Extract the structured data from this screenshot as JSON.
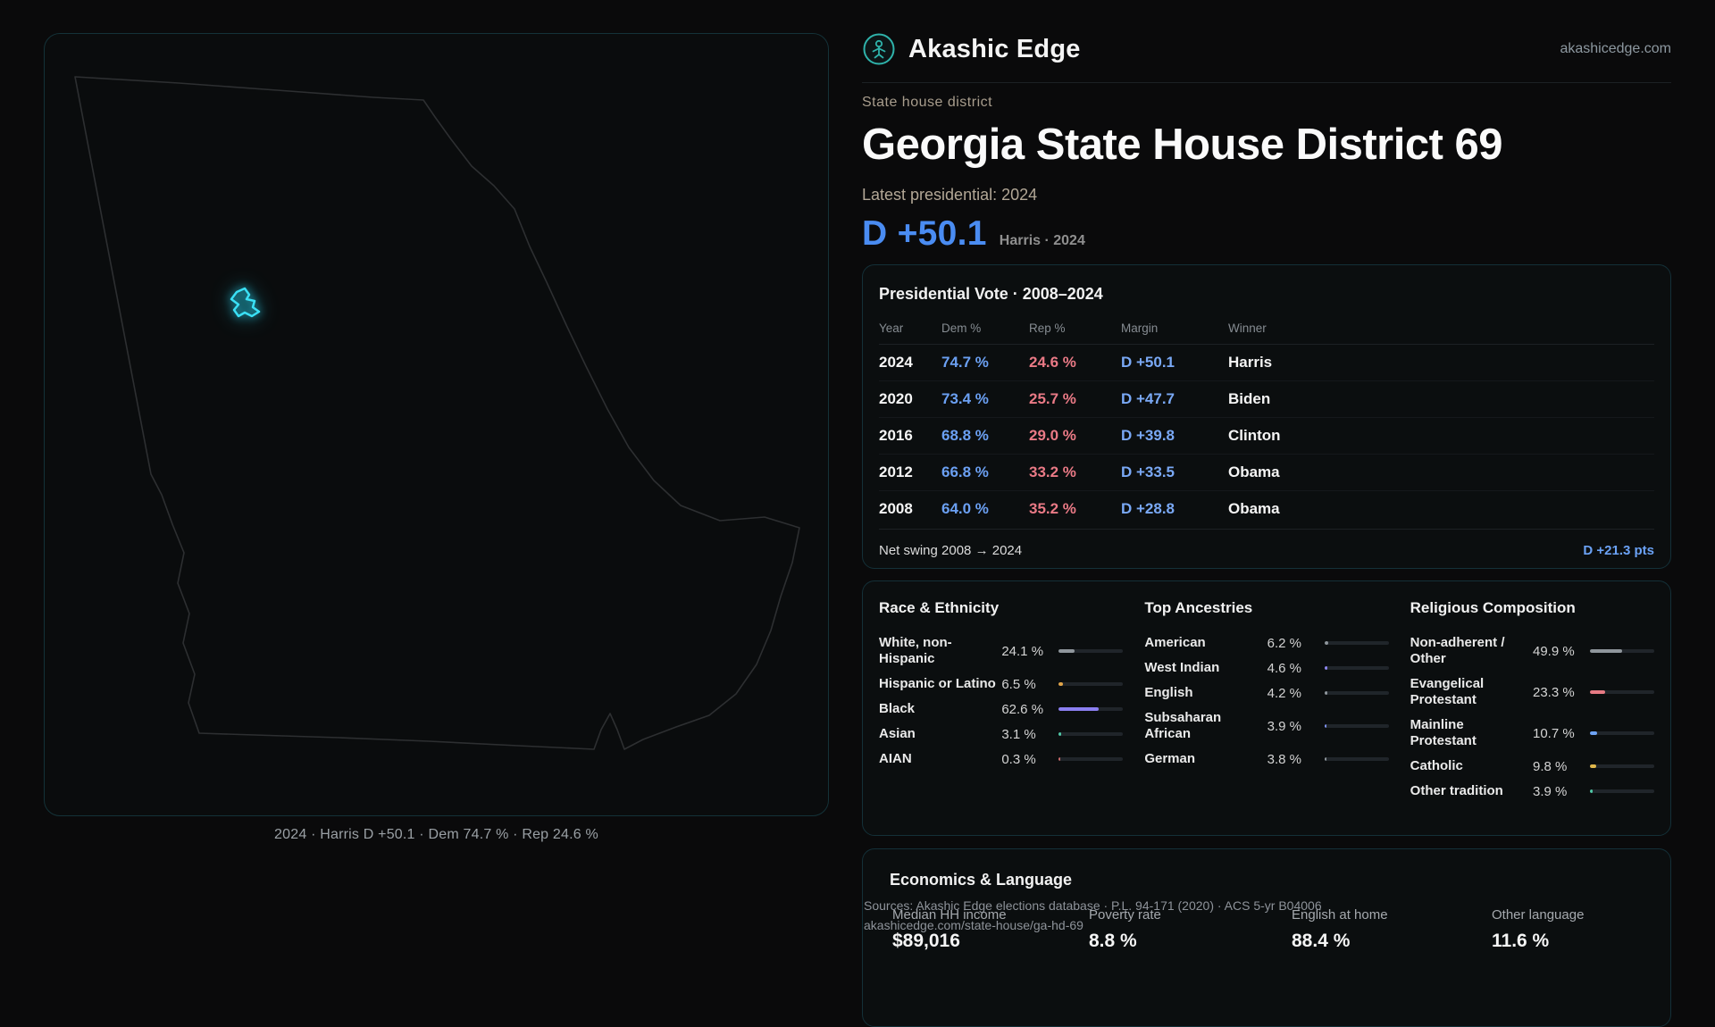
{
  "site": {
    "brand": "Akashic Edge",
    "domain": "akashicedge.com"
  },
  "header": {
    "kicker": "State house district",
    "title": "Georgia State House District 69",
    "subtitle": "Latest presidential: 2024",
    "headline_margin": "D +50.1",
    "headline_context": "Harris · 2024"
  },
  "map": {
    "caption": "2024 · Harris D +50.1 · Dem 74.7 % · Rep 24.6 %",
    "district_color": "#3ae0f5",
    "outline_color": "#2d2f31"
  },
  "presidential": {
    "title": "Presidential Vote · 2008–2024",
    "columns": [
      "Year",
      "Dem %",
      "Rep %",
      "Margin",
      "Winner"
    ],
    "rows": [
      {
        "year": "2024",
        "dem": "74.7 %",
        "rep": "24.6 %",
        "margin": "D +50.1",
        "winner": "Harris"
      },
      {
        "year": "2020",
        "dem": "73.4 %",
        "rep": "25.7 %",
        "margin": "D +47.7",
        "winner": "Biden"
      },
      {
        "year": "2016",
        "dem": "68.8 %",
        "rep": "29.0 %",
        "margin": "D +39.8",
        "winner": "Clinton"
      },
      {
        "year": "2012",
        "dem": "66.8 %",
        "rep": "33.2 %",
        "margin": "D +33.5",
        "winner": "Obama"
      },
      {
        "year": "2008",
        "dem": "64.0 %",
        "rep": "35.2 %",
        "margin": "D +28.8",
        "winner": "Obama"
      }
    ],
    "net_swing_label": "Net swing 2008 → 2024",
    "net_swing_value": "D +21.3 pts"
  },
  "demographics": {
    "sections": [
      {
        "key": "race",
        "title": "Race & Ethnicity",
        "rows": [
          {
            "label": "White, non-Hispanic",
            "value": "24.1 %",
            "pct": 24.1,
            "color": "#8f969c"
          },
          {
            "label": "Hispanic or Latino",
            "value": "6.5 %",
            "pct": 6.5,
            "color": "#e0a449"
          },
          {
            "label": "Black",
            "value": "62.6 %",
            "pct": 62.6,
            "color": "#8b7ff0"
          },
          {
            "label": "Asian",
            "value": "3.1 %",
            "pct": 3.1,
            "color": "#4fc7a5"
          },
          {
            "label": "AIAN",
            "value": "0.3 %",
            "pct": 0.3,
            "color": "#c96a6a"
          }
        ]
      },
      {
        "key": "ancestries",
        "title": "Top Ancestries",
        "rows": [
          {
            "label": "American",
            "value": "6.2 %",
            "pct": 6.2,
            "color": "#8f969c"
          },
          {
            "label": "West Indian",
            "value": "4.6 %",
            "pct": 4.6,
            "color": "#8d86ee"
          },
          {
            "label": "English",
            "value": "4.2 %",
            "pct": 4.2,
            "color": "#8f969c"
          },
          {
            "label": "Subsaharan African",
            "value": "3.9 %",
            "pct": 3.9,
            "color": "#7f93ee"
          },
          {
            "label": "German",
            "value": "3.8 %",
            "pct": 3.8,
            "color": "#8f969c"
          }
        ]
      },
      {
        "key": "religion",
        "title": "Religious Composition",
        "rows": [
          {
            "label": "Non-adherent / Other",
            "value": "49.9 %",
            "pct": 49.9,
            "color": "#8f969c"
          },
          {
            "label": "Evangelical Protestant",
            "value": "23.3 %",
            "pct": 23.3,
            "color": "#e77b84"
          },
          {
            "label": "Mainline Protestant",
            "value": "10.7 %",
            "pct": 10.7,
            "color": "#6ea3f5"
          },
          {
            "label": "Catholic",
            "value": "9.8 %",
            "pct": 9.8,
            "color": "#e0b84c"
          },
          {
            "label": "Other tradition",
            "value": "3.9 %",
            "pct": 3.9,
            "color": "#4fc7a5"
          }
        ]
      }
    ]
  },
  "economics": {
    "title": "Economics & Language",
    "stats": [
      {
        "key": "median-hh-income",
        "label": "Median HH income",
        "value": "$89,016"
      },
      {
        "key": "poverty-rate",
        "label": "Poverty rate",
        "value": "8.8 %"
      },
      {
        "key": "english-at-home",
        "label": "English at home",
        "value": "88.4 %"
      },
      {
        "key": "other-language",
        "label": "Other language",
        "value": "11.6 %"
      }
    ]
  },
  "footer": {
    "sources": "Sources: Akashic Edge elections database · P.L. 94-171 (2020) · ACS 5-yr B04006",
    "permalink": "akashicedge.com/state-house/ga-hd-69"
  }
}
